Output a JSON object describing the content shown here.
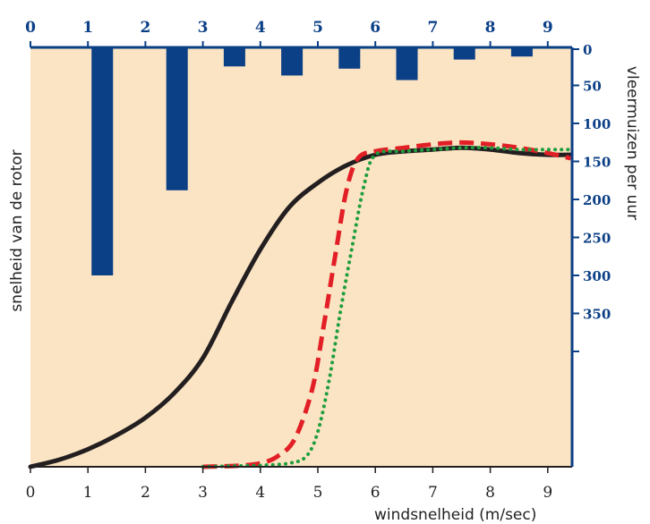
{
  "chart_data": {
    "type": "bar+line",
    "xlabel": "windsnelheid (m/sec)",
    "ylabel_left": "snelheid van de rotor",
    "ylabel_right": "vleermuizen per uur",
    "x_range": [
      0,
      9.4
    ],
    "x_ticks": [
      "0",
      "1",
      "2",
      "3",
      "4",
      "5",
      "6",
      "7",
      "8",
      "9"
    ],
    "top_x_ticks": [
      "0",
      "1",
      "2",
      "3",
      "4",
      "5",
      "6",
      "7",
      "8",
      "9"
    ],
    "right_axis": {
      "range": [
        0,
        400
      ],
      "inverted": true,
      "ticks": [
        "0",
        "50",
        "100",
        "150",
        "200",
        "250",
        "300",
        "350",
        ""
      ]
    },
    "bars": {
      "color": "#0b3f86",
      "series": [
        {
          "x": 1.25,
          "value": 300
        },
        {
          "x": 2.55,
          "value": 188
        },
        {
          "x": 3.55,
          "value": 25
        },
        {
          "x": 4.55,
          "value": 37
        },
        {
          "x": 5.55,
          "value": 28
        },
        {
          "x": 6.55,
          "value": 43
        },
        {
          "x": 7.55,
          "value": 16
        },
        {
          "x": 8.55,
          "value": 12
        }
      ]
    },
    "lines": [
      {
        "style": "solid",
        "color": "#231f20",
        "points": [
          [
            0,
            0
          ],
          [
            0.5,
            2
          ],
          [
            1,
            5
          ],
          [
            1.5,
            9
          ],
          [
            2,
            14
          ],
          [
            2.5,
            21
          ],
          [
            3,
            31
          ],
          [
            3.5,
            47
          ],
          [
            4,
            62
          ],
          [
            4.5,
            74
          ],
          [
            5,
            81
          ],
          [
            5.5,
            86
          ],
          [
            6,
            89
          ],
          [
            6.5,
            90
          ],
          [
            7,
            90.5
          ],
          [
            7.5,
            91
          ],
          [
            8,
            90.5
          ],
          [
            8.5,
            89.5
          ],
          [
            9,
            89
          ],
          [
            9.4,
            89
          ]
        ]
      },
      {
        "style": "dashed",
        "color": "#e21f26",
        "points": [
          [
            3,
            0
          ],
          [
            3.6,
            0.3
          ],
          [
            4,
            1
          ],
          [
            4.3,
            3
          ],
          [
            4.6,
            8
          ],
          [
            4.9,
            22
          ],
          [
            5.1,
            40
          ],
          [
            5.3,
            60
          ],
          [
            5.5,
            79
          ],
          [
            5.7,
            88
          ],
          [
            6,
            90
          ],
          [
            6.5,
            91
          ],
          [
            7,
            92
          ],
          [
            7.5,
            92.5
          ],
          [
            8,
            92
          ],
          [
            8.5,
            91
          ],
          [
            9,
            89.5
          ],
          [
            9.4,
            88
          ]
        ]
      },
      {
        "style": "dotted",
        "color": "#1f9e3e",
        "points": [
          [
            3,
            0
          ],
          [
            3.5,
            0.2
          ],
          [
            4,
            0.4
          ],
          [
            4.5,
            1
          ],
          [
            4.8,
            3
          ],
          [
            5,
            10
          ],
          [
            5.2,
            25
          ],
          [
            5.4,
            45
          ],
          [
            5.6,
            63
          ],
          [
            5.8,
            80
          ],
          [
            6,
            89
          ],
          [
            6.5,
            90
          ],
          [
            7,
            90.5
          ],
          [
            7.5,
            91
          ],
          [
            8,
            91
          ],
          [
            8.5,
            90.5
          ],
          [
            9,
            90.5
          ],
          [
            9.4,
            90.5
          ]
        ]
      }
    ],
    "colors": {
      "plot_background": "#fbe4c3",
      "axis": "#0b3f86"
    }
  }
}
